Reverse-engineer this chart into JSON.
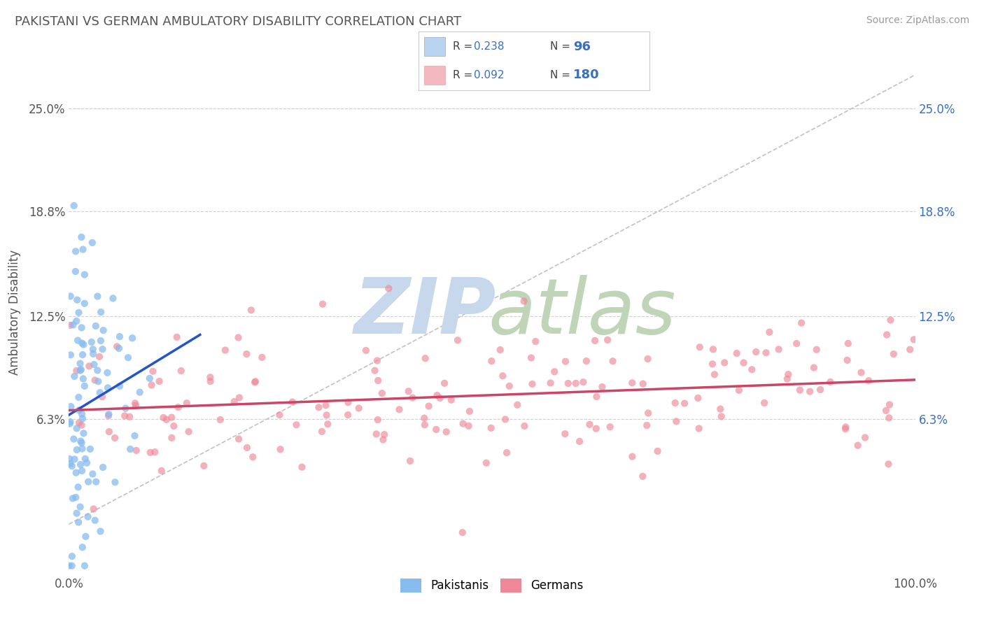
{
  "title": "PAKISTANI VS GERMAN AMBULATORY DISABILITY CORRELATION CHART",
  "source": "Source: ZipAtlas.com",
  "ylabel": "Ambulatory Disability",
  "xlim": [
    0.0,
    1.0
  ],
  "ylim": [
    -0.03,
    0.285
  ],
  "x_ticks": [
    0.0,
    1.0
  ],
  "x_tick_labels": [
    "0.0%",
    "100.0%"
  ],
  "y_ticks": [
    0.063,
    0.125,
    0.188,
    0.25
  ],
  "y_tick_labels": [
    "6.3%",
    "12.5%",
    "18.8%",
    "25.0%"
  ],
  "pakistani_color": "#b8d4f0",
  "german_color": "#f4b8c0",
  "pakistani_R": 0.238,
  "pakistani_N": 96,
  "german_R": 0.092,
  "german_N": 180,
  "legend_pakistanis": "Pakistanis",
  "legend_germans": "Germans",
  "grid_color": "#d0d0d0",
  "trend_line_color_pakistani": "#2255cc",
  "trend_line_color_german": "#cc4466",
  "diagonal_line_color": "#bbbbbb",
  "pakistani_scatter_color": "#88bbee",
  "german_scatter_color": "#ee8899",
  "title_color": "#555555",
  "axis_label_color": "#555555",
  "tick_color": "#555555",
  "right_tick_color": "#3a6fbf",
  "source_color": "#999999",
  "watermark_zip_color": "#c8d8ec",
  "watermark_atlas_color": "#c0d4b8",
  "legend_border_color": "#cccccc",
  "legend_r_color": "#444444",
  "legend_n_color": "#3a6fbf"
}
